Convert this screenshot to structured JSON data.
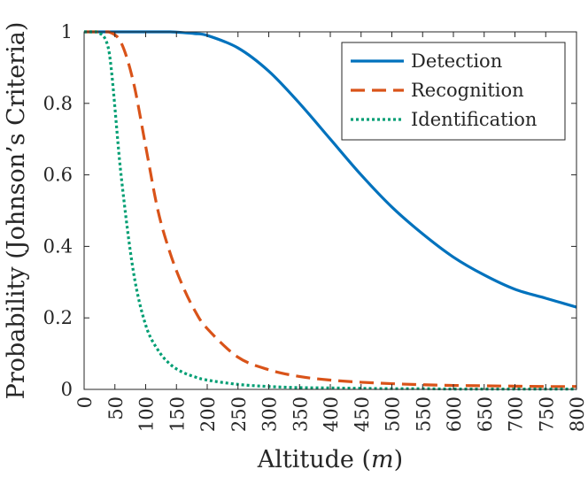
{
  "chart_data": {
    "type": "line",
    "title": "",
    "xlabel": "Altitude",
    "xlabel_unit": "m",
    "xlabel_open": "(",
    "xlabel_close": ")",
    "ylabel": "Probability (Johnson’s Criteria)",
    "xlim": [
      0,
      800
    ],
    "ylim": [
      0,
      1
    ],
    "x_ticks": [
      0,
      50,
      100,
      150,
      200,
      250,
      300,
      350,
      400,
      450,
      500,
      550,
      600,
      650,
      700,
      750,
      800
    ],
    "y_ticks": [
      0,
      0.2,
      0.4,
      0.6,
      0.8,
      1
    ],
    "y_tick_labels": [
      "0",
      "0.2",
      "0.4",
      "0.6",
      "0.8",
      "1"
    ],
    "grid": false,
    "legend_position": "top-right",
    "x": [
      0,
      20,
      40,
      60,
      80,
      100,
      120,
      140,
      160,
      180,
      200,
      250,
      300,
      350,
      400,
      450,
      500,
      550,
      600,
      650,
      700,
      750,
      800
    ],
    "series": [
      {
        "name": "Detection",
        "color": "#0072BD",
        "style": "solid",
        "values": [
          1.0,
          1.0,
          1.0,
          1.0,
          1.0,
          1.0,
          1.0,
          1.0,
          0.998,
          0.995,
          0.99,
          0.955,
          0.89,
          0.8,
          0.7,
          0.6,
          0.51,
          0.435,
          0.37,
          0.32,
          0.28,
          0.255,
          0.23
        ]
      },
      {
        "name": "Recognition",
        "color": "#D95319",
        "style": "dashed",
        "values": [
          1.0,
          1.0,
          1.0,
          0.97,
          0.86,
          0.68,
          0.5,
          0.38,
          0.29,
          0.22,
          0.17,
          0.09,
          0.055,
          0.036,
          0.026,
          0.02,
          0.016,
          0.013,
          0.011,
          0.01,
          0.009,
          0.008,
          0.008
        ]
      },
      {
        "name": "Identification",
        "color": "#009E73",
        "style": "dotted",
        "values": [
          1.0,
          1.0,
          0.95,
          0.6,
          0.33,
          0.18,
          0.11,
          0.07,
          0.048,
          0.035,
          0.026,
          0.014,
          0.008,
          0.005,
          0.004,
          0.003,
          0.002,
          0.002,
          0.001,
          0.001,
          0.001,
          0.001,
          0.001
        ]
      }
    ]
  }
}
